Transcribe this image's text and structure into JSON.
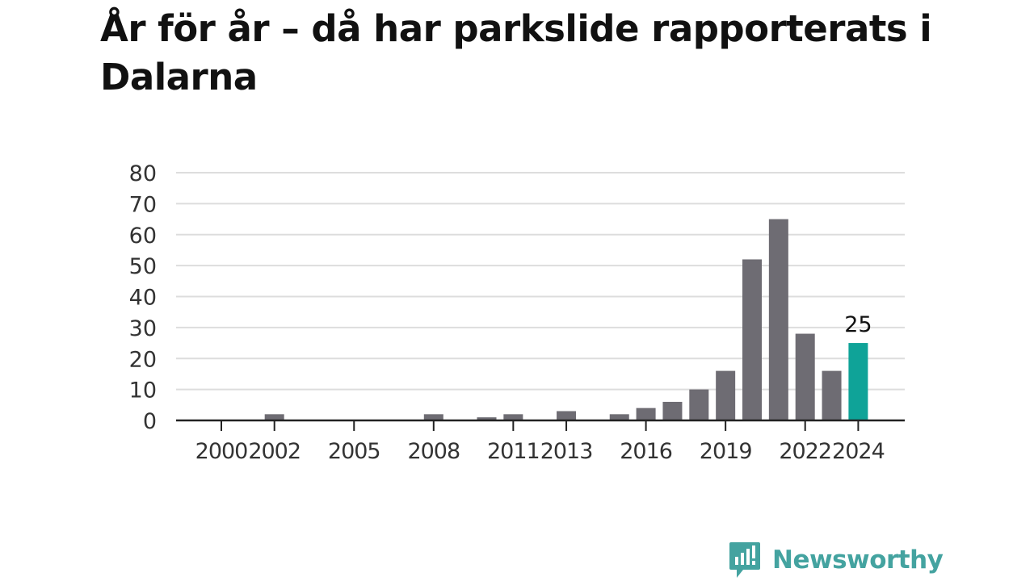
{
  "title": "År för år – då har parkslide rapporterats i Dalarna",
  "brand": {
    "name": "Newsworthy",
    "icon": "newsworthy-logo-icon"
  },
  "colors": {
    "bar": "#6e6c73",
    "highlight": "#0fa398",
    "grid": "#dddddd",
    "axis": "#222222",
    "text": "#333333"
  },
  "chart_data": {
    "type": "bar",
    "categories": [
      "2000",
      "2001",
      "2002",
      "2003",
      "2004",
      "2005",
      "2006",
      "2007",
      "2008",
      "2009",
      "2010",
      "2011",
      "2012",
      "2013",
      "2014",
      "2015",
      "2016",
      "2017",
      "2018",
      "2019",
      "2020",
      "2021",
      "2022",
      "2023",
      "2024"
    ],
    "values": [
      0,
      0,
      2,
      0,
      0,
      0,
      0,
      0,
      2,
      0,
      1,
      2,
      0,
      3,
      0,
      2,
      4,
      6,
      10,
      16,
      52,
      65,
      28,
      16,
      25
    ],
    "x_tick_labels": [
      "2000",
      "2002",
      "2005",
      "2008",
      "2011",
      "2013",
      "2016",
      "2019",
      "2022",
      "2024"
    ],
    "y_ticks": [
      0,
      10,
      20,
      30,
      40,
      50,
      60,
      70,
      80
    ],
    "ylim": [
      0,
      80
    ],
    "highlight_category": "2024",
    "highlight_label": "25",
    "grid": true,
    "xlabel": "",
    "ylabel": ""
  }
}
